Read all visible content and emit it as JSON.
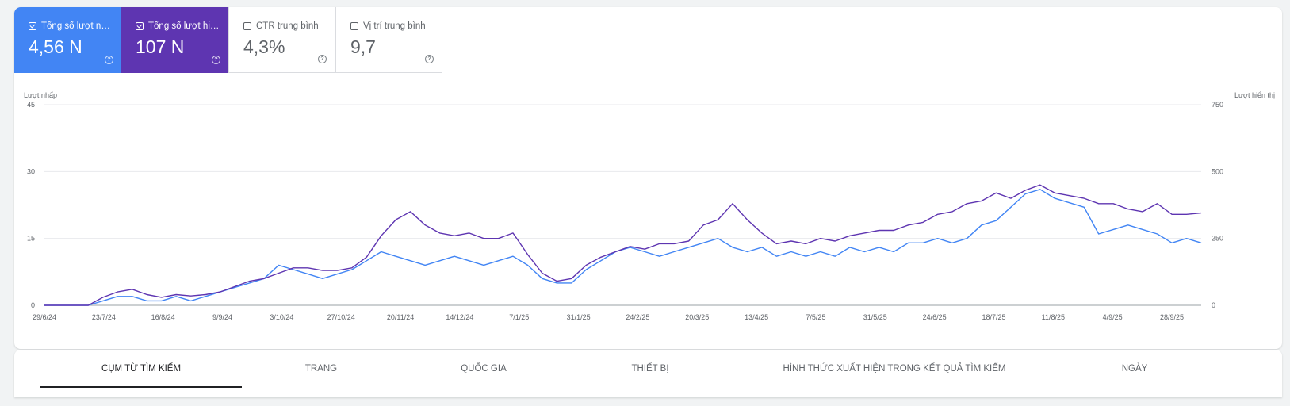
{
  "metrics": [
    {
      "label": "Tổng số lượt nh...",
      "value": "4,56 N",
      "checked": true,
      "color": "#4285f4"
    },
    {
      "label": "Tổng số lượt hiể...",
      "value": "107 N",
      "checked": true,
      "color": "#5e35b1"
    },
    {
      "label": "CTR trung bình",
      "value": "4,3%",
      "checked": false
    },
    {
      "label": "Vị trí trung bình",
      "value": "9,7",
      "checked": false
    }
  ],
  "chart_data": {
    "type": "line",
    "left_axis_label": "Lượt nhấp",
    "right_axis_label": "Lượt hiển thị",
    "left_ticks": [
      0,
      15,
      30,
      45
    ],
    "right_ticks": [
      0,
      250,
      500,
      750
    ],
    "left_ylim": [
      0,
      45
    ],
    "right_ylim": [
      0,
      750
    ],
    "x_tick_labels": [
      "29/6/24",
      "23/7/24",
      "16/8/24",
      "9/9/24",
      "3/10/24",
      "27/10/24",
      "20/11/24",
      "14/12/24",
      "7/1/25",
      "31/1/25",
      "24/2/25",
      "20/3/25",
      "13/4/25",
      "7/5/25",
      "31/5/25",
      "24/6/25",
      "18/7/25",
      "11/8/25",
      "4/9/25",
      "28/9/25"
    ],
    "grid": true,
    "series": [
      {
        "name": "Tổng số lượt nhấp",
        "axis": "left",
        "color": "#4285f4",
        "x": [
          "29/6/24",
          "5/7/24",
          "11/7/24",
          "17/7/24",
          "23/7/24",
          "29/7/24",
          "4/8/24",
          "10/8/24",
          "16/8/24",
          "22/8/24",
          "28/8/24",
          "3/9/24",
          "9/9/24",
          "15/9/24",
          "21/9/24",
          "27/9/24",
          "3/10/24",
          "9/10/24",
          "15/10/24",
          "21/10/24",
          "27/10/24",
          "2/11/24",
          "8/11/24",
          "14/11/24",
          "20/11/24",
          "26/11/24",
          "2/12/24",
          "8/12/24",
          "14/12/24",
          "20/12/24",
          "26/12/24",
          "1/1/25",
          "7/1/25",
          "13/1/25",
          "19/1/25",
          "25/1/25",
          "31/1/25",
          "6/2/25",
          "12/2/25",
          "18/2/25",
          "24/2/25",
          "2/3/25",
          "8/3/25",
          "14/3/25",
          "20/3/25",
          "26/3/25",
          "1/4/25",
          "7/4/25",
          "13/4/25",
          "19/4/25",
          "25/4/25",
          "1/5/25",
          "7/5/25",
          "13/5/25",
          "19/5/25",
          "25/5/25",
          "31/5/25",
          "6/6/25",
          "12/6/25",
          "18/6/25",
          "24/6/25",
          "30/6/25",
          "6/7/25",
          "12/7/25",
          "18/7/25",
          "24/7/25",
          "30/7/25",
          "5/8/25",
          "11/8/25",
          "17/8/25",
          "23/8/25",
          "29/8/25",
          "4/9/25",
          "10/9/25",
          "16/9/25",
          "22/9/25",
          "28/9/25",
          "4/10/25",
          "10/10/25",
          "14/10/25"
        ],
        "values": [
          0,
          0,
          0,
          0,
          1,
          2,
          2,
          1,
          1,
          2,
          1,
          2,
          3,
          4,
          5,
          6,
          9,
          8,
          7,
          6,
          7,
          8,
          10,
          12,
          11,
          10,
          9,
          10,
          11,
          10,
          9,
          10,
          11,
          9,
          6,
          5,
          5,
          8,
          10,
          12,
          13,
          12,
          11,
          12,
          13,
          14,
          15,
          13,
          12,
          13,
          11,
          12,
          11,
          12,
          11,
          13,
          12,
          13,
          12,
          14,
          14,
          15,
          14,
          15,
          18,
          19,
          22,
          25,
          26,
          24,
          23,
          22,
          16,
          17,
          18,
          17,
          16,
          14,
          15,
          14
        ]
      },
      {
        "name": "Tổng số lượt hiển thị",
        "axis": "right",
        "color": "#5e35b1",
        "x": [
          "29/6/24",
          "5/7/24",
          "11/7/24",
          "17/7/24",
          "23/7/24",
          "29/7/24",
          "4/8/24",
          "10/8/24",
          "16/8/24",
          "22/8/24",
          "28/8/24",
          "3/9/24",
          "9/9/24",
          "15/9/24",
          "21/9/24",
          "27/9/24",
          "3/10/24",
          "9/10/24",
          "15/10/24",
          "21/10/24",
          "27/10/24",
          "2/11/24",
          "8/11/24",
          "14/11/24",
          "20/11/24",
          "26/11/24",
          "2/12/24",
          "8/12/24",
          "14/12/24",
          "20/12/24",
          "26/12/24",
          "1/1/25",
          "7/1/25",
          "13/1/25",
          "19/1/25",
          "25/1/25",
          "31/1/25",
          "6/2/25",
          "12/2/25",
          "18/2/25",
          "24/2/25",
          "2/3/25",
          "8/3/25",
          "14/3/25",
          "20/3/25",
          "26/3/25",
          "1/4/25",
          "7/4/25",
          "13/4/25",
          "19/4/25",
          "25/4/25",
          "1/5/25",
          "7/5/25",
          "13/5/25",
          "19/5/25",
          "25/5/25",
          "31/5/25",
          "6/6/25",
          "12/6/25",
          "18/6/25",
          "24/6/25",
          "30/6/25",
          "6/7/25",
          "12/7/25",
          "18/7/25",
          "24/7/25",
          "30/7/25",
          "5/8/25",
          "11/8/25",
          "17/8/25",
          "23/8/25",
          "29/8/25",
          "4/9/25",
          "10/9/25",
          "16/9/25",
          "22/9/25",
          "28/9/25",
          "4/10/25",
          "10/10/25",
          "14/10/25"
        ],
        "values": [
          0,
          0,
          0,
          0,
          30,
          50,
          60,
          40,
          30,
          40,
          35,
          40,
          50,
          70,
          90,
          100,
          120,
          140,
          140,
          130,
          130,
          140,
          180,
          260,
          320,
          350,
          300,
          270,
          260,
          270,
          250,
          250,
          270,
          190,
          120,
          90,
          100,
          150,
          180,
          200,
          220,
          210,
          230,
          230,
          240,
          300,
          320,
          380,
          320,
          270,
          230,
          240,
          230,
          250,
          240,
          260,
          270,
          280,
          280,
          300,
          310,
          340,
          350,
          380,
          390,
          420,
          400,
          430,
          450,
          420,
          410,
          400,
          380,
          380,
          360,
          350,
          380,
          340,
          340,
          345
        ]
      }
    ]
  },
  "tabs": [
    "CỤM TỪ TÌM KIẾM",
    "TRANG",
    "QUỐC GIA",
    "THIẾT BỊ",
    "HÌNH THỨC XUẤT HIỆN TRONG KẾT QUẢ TÌM KIẾM",
    "NGÀY"
  ],
  "selected_tab": "CỤM TỪ TÌM KIẾM"
}
